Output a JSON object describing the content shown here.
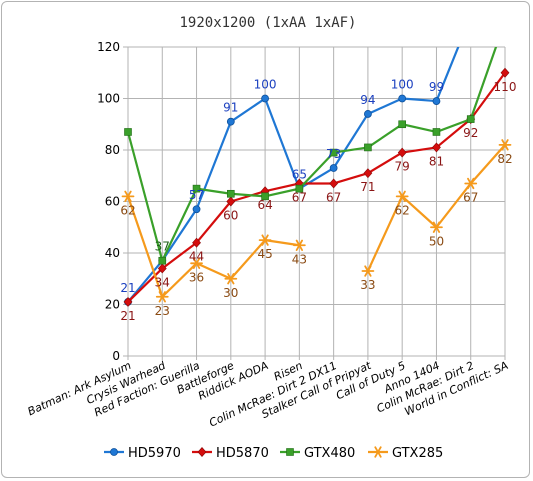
{
  "chart_data": {
    "type": "line",
    "title": "1920x1200 (1xAA 1xAF)",
    "ylim": [
      0,
      120
    ],
    "yticks": [
      0,
      20,
      40,
      60,
      80,
      100,
      120
    ],
    "grid": true,
    "legend_position": "bottom",
    "categories": [
      "Batman: Ark Asylum",
      "Crysis Warhead",
      "Red Faction: Guerilla",
      "Battleforge",
      "Riddick AODA",
      "Risen",
      "Colin McRae: Dirt 2 DX11",
      "Stalker Call of Pripyat",
      "Call of Duty 5",
      "Anno 1404",
      "Colin McRae: Dirt 2",
      "World in Conflict: SA"
    ],
    "series": [
      {
        "name": "HD5970",
        "color": "#1f77d4",
        "marker": "circle",
        "values": [
          21,
          37,
          57,
          91,
          100,
          65,
          73,
          94,
          100,
          99,
          132,
          null
        ],
        "labels": [
          "21",
          null,
          "57",
          "91",
          "100",
          "65",
          "73",
          "94",
          "100",
          "99",
          null,
          null
        ]
      },
      {
        "name": "HD5870",
        "color": "#d40d0d",
        "marker": "diamond",
        "values": [
          21,
          34,
          44,
          60,
          64,
          67,
          67,
          71,
          79,
          81,
          92,
          110
        ],
        "labels": [
          "21",
          "34",
          "44",
          "60",
          "64",
          "67",
          "67",
          "71",
          "79",
          "81",
          "92",
          "110"
        ]
      },
      {
        "name": "GTX480",
        "color": "#3aa02a",
        "marker": "square",
        "values": [
          87,
          37,
          65,
          63,
          62,
          65,
          79,
          81,
          90,
          87,
          92,
          130
        ],
        "labels": [
          null,
          "37",
          null,
          null,
          null,
          null,
          null,
          null,
          null,
          null,
          null,
          null
        ]
      },
      {
        "name": "GTX285",
        "color": "#f59a1c",
        "marker": "star",
        "values": [
          62,
          23,
          36,
          30,
          45,
          43,
          null,
          33,
          62,
          50,
          67,
          82
        ],
        "labels": [
          "62",
          "23",
          "36",
          "30",
          "45",
          "43",
          null,
          "33",
          "62",
          "50",
          "67",
          "82"
        ]
      }
    ]
  }
}
